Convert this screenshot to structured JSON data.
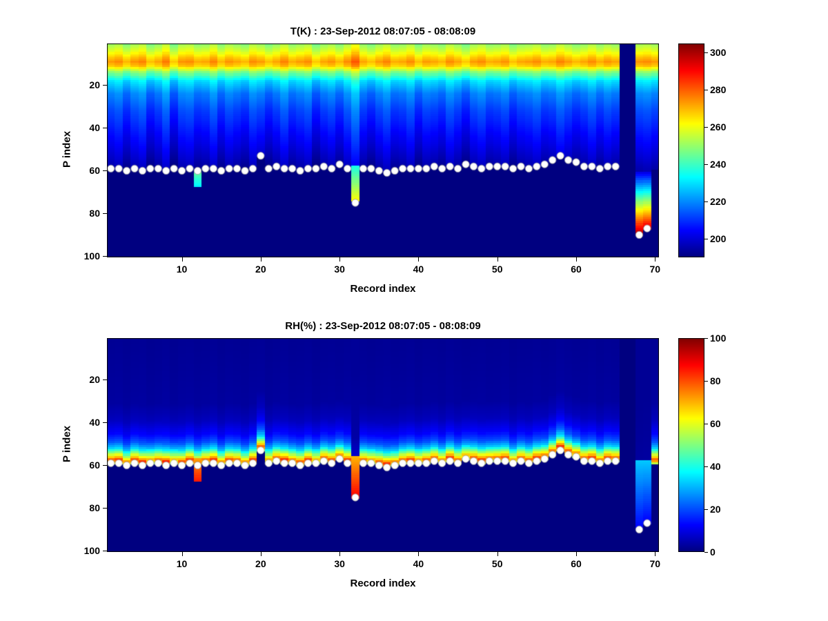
{
  "chart_data": [
    {
      "type": "heatmap",
      "title": "T(K) : 23-Sep-2012 08:07:05 - 08:08:09",
      "xlabel": "Record index",
      "ylabel": "P index",
      "x_range": [
        1,
        70
      ],
      "y_range": [
        1,
        100
      ],
      "x_ticks": [
        10,
        20,
        30,
        40,
        50,
        60,
        70
      ],
      "y_ticks": [
        20,
        40,
        60,
        80,
        100
      ],
      "colormap": "jet",
      "clim": [
        190,
        305
      ],
      "colorbar_ticks": [
        200,
        220,
        240,
        260,
        280,
        300
      ],
      "background_value": 190,
      "anchor_band_to_surface": false,
      "offset_mode": "add",
      "profile": {
        "p": [
          1,
          4,
          7,
          9,
          11,
          14,
          18,
          24,
          32,
          40,
          48,
          54,
          58,
          60,
          100
        ],
        "v": [
          250,
          257,
          267,
          272,
          267,
          247,
          229,
          218,
          211,
          206,
          201,
          197,
          194,
          193,
          192
        ]
      },
      "column_offsets": [
        1,
        3,
        -2,
        2,
        4,
        -3,
        0,
        5,
        -4,
        2,
        3,
        -1,
        0,
        4,
        -2,
        2,
        0,
        -2,
        3,
        1,
        -3,
        0,
        4,
        -1,
        1,
        3,
        -4,
        0,
        2,
        -2,
        3,
        9,
        0,
        -3,
        1,
        4,
        -1,
        0,
        3,
        -3,
        1,
        0,
        -2,
        3,
        0,
        -4,
        1,
        3,
        -1,
        0,
        2,
        -3,
        0,
        1,
        3,
        -1,
        0,
        4,
        1,
        -2,
        0,
        3,
        -1,
        2,
        0,
        0,
        0,
        2,
        3,
        1
      ],
      "surface_mask": [
        59,
        59,
        60,
        59,
        60,
        59,
        59,
        60,
        59,
        60,
        59,
        60,
        59,
        59,
        60,
        59,
        59,
        60,
        59,
        53,
        59,
        58,
        59,
        59,
        60,
        59,
        59,
        58,
        59,
        57,
        59,
        75,
        59,
        59,
        60,
        61,
        60,
        59,
        59,
        59,
        59,
        58,
        59,
        58,
        59,
        57,
        58,
        59,
        58,
        58,
        58,
        59,
        58,
        59,
        58,
        57,
        55,
        53,
        55,
        56,
        58,
        58,
        59,
        58,
        58,
        59,
        59,
        90,
        87,
        59
      ],
      "surface_dots": [
        59,
        59,
        60,
        59,
        60,
        59,
        59,
        60,
        59,
        60,
        59,
        60,
        59,
        59,
        60,
        59,
        59,
        60,
        59,
        53,
        59,
        58,
        59,
        59,
        60,
        59,
        59,
        58,
        59,
        57,
        59,
        75,
        59,
        59,
        60,
        61,
        60,
        59,
        59,
        59,
        59,
        58,
        59,
        58,
        59,
        57,
        58,
        59,
        58,
        58,
        58,
        59,
        58,
        59,
        58,
        57,
        55,
        53,
        55,
        56,
        58,
        58,
        59,
        58,
        58,
        null,
        null,
        90,
        87,
        null
      ],
      "overrides": [
        {
          "record": 12,
          "p_start": 60,
          "p_end": 67,
          "v_start": 246,
          "v_end": 232
        },
        {
          "record": 32,
          "p_start": 58,
          "p_end": 74,
          "v_start": 236,
          "v_end": 262
        },
        {
          "record": 66,
          "p_start": 1,
          "p_end": 100,
          "v_start": 190,
          "v_end": 190
        },
        {
          "record": 67,
          "p_start": 1,
          "p_end": 100,
          "v_start": 190,
          "v_end": 190
        },
        {
          "record": 68,
          "p_start": 61,
          "p_end": 90,
          "v_start": 202,
          "v_end": 302
        },
        {
          "record": 69,
          "p_start": 61,
          "p_end": 87,
          "v_start": 202,
          "v_end": 296
        }
      ]
    },
    {
      "type": "heatmap",
      "title": "RH(%) : 23-Sep-2012 08:07:05 - 08:08:09",
      "xlabel": "Record index",
      "ylabel": "P index",
      "x_range": [
        1,
        70
      ],
      "y_range": [
        1,
        100
      ],
      "x_ticks": [
        10,
        20,
        30,
        40,
        50,
        60,
        70
      ],
      "y_ticks": [
        20,
        40,
        60,
        80,
        100
      ],
      "colormap": "jet",
      "clim": [
        0,
        100
      ],
      "colorbar_ticks": [
        0,
        20,
        40,
        60,
        80,
        100
      ],
      "background_value": 0,
      "anchor_band_to_surface": true,
      "offset_mode": "scale",
      "profile": {
        "p": [
          1,
          30,
          38,
          44,
          48,
          51,
          53,
          55,
          56,
          57,
          58,
          60,
          100
        ],
        "v": [
          2,
          3,
          6,
          12,
          20,
          32,
          48,
          65,
          75,
          70,
          55,
          0,
          0
        ]
      },
      "column_offsets": [
        1,
        3,
        -2,
        2,
        4,
        -3,
        0,
        5,
        -4,
        2,
        3,
        -1,
        0,
        4,
        -2,
        2,
        0,
        -2,
        3,
        1,
        -3,
        0,
        4,
        -1,
        1,
        3,
        -4,
        0,
        2,
        -2,
        3,
        9,
        0,
        -3,
        1,
        4,
        -1,
        0,
        3,
        -3,
        1,
        0,
        -2,
        3,
        0,
        -4,
        1,
        3,
        -1,
        0,
        2,
        -3,
        0,
        1,
        3,
        -1,
        0,
        4,
        1,
        -2,
        0,
        3,
        -1,
        2,
        0,
        0,
        0,
        2,
        3,
        1
      ],
      "surface_mask": [
        59,
        59,
        60,
        59,
        60,
        59,
        59,
        60,
        59,
        60,
        59,
        60,
        59,
        59,
        60,
        59,
        59,
        60,
        59,
        53,
        59,
        58,
        59,
        59,
        60,
        59,
        59,
        58,
        59,
        57,
        59,
        75,
        59,
        59,
        60,
        61,
        60,
        59,
        59,
        59,
        59,
        58,
        59,
        58,
        59,
        57,
        58,
        59,
        58,
        58,
        58,
        59,
        58,
        59,
        58,
        57,
        55,
        53,
        55,
        56,
        58,
        58,
        59,
        58,
        58,
        59,
        59,
        90,
        87,
        59
      ],
      "surface_dots": [
        59,
        59,
        60,
        59,
        60,
        59,
        59,
        60,
        59,
        60,
        59,
        60,
        59,
        59,
        60,
        59,
        59,
        60,
        59,
        53,
        59,
        58,
        59,
        59,
        60,
        59,
        59,
        58,
        59,
        57,
        59,
        75,
        59,
        59,
        60,
        61,
        60,
        59,
        59,
        59,
        59,
        58,
        59,
        58,
        59,
        57,
        58,
        59,
        58,
        58,
        58,
        59,
        58,
        59,
        58,
        57,
        55,
        53,
        55,
        56,
        58,
        58,
        59,
        58,
        58,
        null,
        null,
        90,
        87,
        null
      ],
      "overrides": [
        {
          "record": 12,
          "p_start": 57,
          "p_end": 67,
          "v_start": 72,
          "v_end": 85
        },
        {
          "record": 32,
          "p_start": 56,
          "p_end": 75,
          "v_start": 70,
          "v_end": 88
        },
        {
          "record": 66,
          "p_start": 1,
          "p_end": 100,
          "v_start": 0,
          "v_end": 0
        },
        {
          "record": 67,
          "p_start": 1,
          "p_end": 100,
          "v_start": 0,
          "v_end": 0
        },
        {
          "record": 68,
          "p_start": 58,
          "p_end": 90,
          "v_start": 32,
          "v_end": 12
        },
        {
          "record": 69,
          "p_start": 58,
          "p_end": 87,
          "v_start": 32,
          "v_end": 12
        }
      ]
    }
  ]
}
